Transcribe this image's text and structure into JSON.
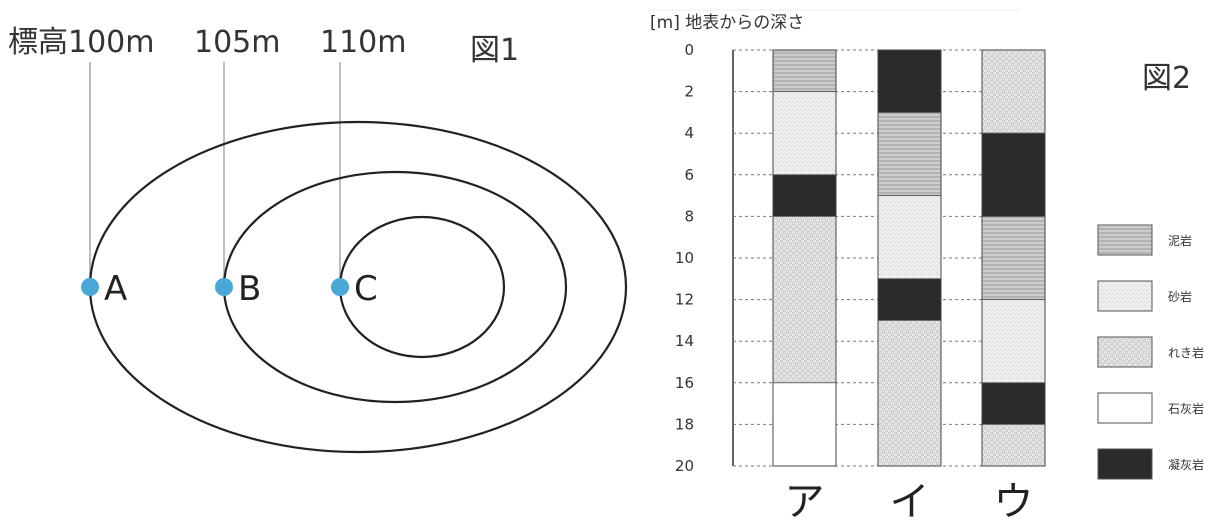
{
  "figure1": {
    "title": "図1",
    "elevation_labels": [
      "標高100m",
      "105m",
      "110m"
    ],
    "points": [
      {
        "name": "A",
        "elevation_m": 100
      },
      {
        "name": "B",
        "elevation_m": 105
      },
      {
        "name": "C",
        "elevation_m": 110
      }
    ],
    "point_color": "#4aa8d8"
  },
  "figure2": {
    "title": "図2",
    "axis_title": "[m] 地表からの深さ",
    "depth_ticks": [
      "0",
      "2",
      "4",
      "6",
      "8",
      "10",
      "12",
      "14",
      "16",
      "18",
      "20"
    ],
    "depth_range": [
      0,
      20
    ],
    "columns": [
      {
        "label": "ア",
        "layers": [
          {
            "rock": "mudstone",
            "from": 0,
            "to": 2
          },
          {
            "rock": "sandstone",
            "from": 2,
            "to": 6
          },
          {
            "rock": "tuff",
            "from": 6,
            "to": 8
          },
          {
            "rock": "conglomerate",
            "from": 8,
            "to": 16
          },
          {
            "rock": "limestone",
            "from": 16,
            "to": 20
          }
        ]
      },
      {
        "label": "イ",
        "layers": [
          {
            "rock": "tuff",
            "from": 0,
            "to": 3
          },
          {
            "rock": "mudstone",
            "from": 3,
            "to": 7
          },
          {
            "rock": "sandstone",
            "from": 7,
            "to": 11
          },
          {
            "rock": "tuff",
            "from": 11,
            "to": 13
          },
          {
            "rock": "conglomerate",
            "from": 13,
            "to": 20
          }
        ]
      },
      {
        "label": "ウ",
        "layers": [
          {
            "rock": "conglomerate",
            "from": 0,
            "to": 4
          },
          {
            "rock": "tuff",
            "from": 4,
            "to": 8
          },
          {
            "rock": "mudstone",
            "from": 8,
            "to": 12
          },
          {
            "rock": "sandstone",
            "from": 12,
            "to": 16
          },
          {
            "rock": "tuff",
            "from": 16,
            "to": 18
          },
          {
            "rock": "conglomerate",
            "from": 18,
            "to": 20
          }
        ]
      }
    ],
    "legend": [
      {
        "rock": "mudstone",
        "label": "泥岩"
      },
      {
        "rock": "sandstone",
        "label": "砂岩"
      },
      {
        "rock": "conglomerate",
        "label": "れき岩"
      },
      {
        "rock": "limestone",
        "label": "石灰岩"
      },
      {
        "rock": "tuff",
        "label": "凝灰岩"
      }
    ]
  }
}
